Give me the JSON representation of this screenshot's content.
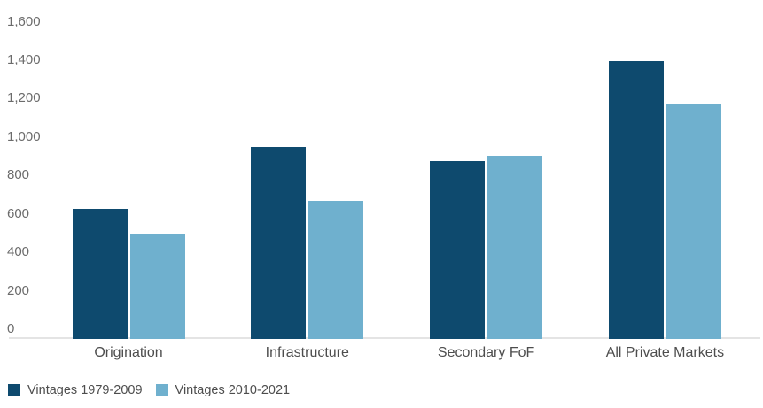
{
  "chart_data": {
    "type": "bar",
    "title": "",
    "subtitle": "",
    "xlabel": "",
    "ylabel": "",
    "categories": [
      "Origination",
      "Infrastructure",
      "Secondary FoF",
      "All Private Markets"
    ],
    "series": [
      {
        "name": "Vintages 1979-2009",
        "color": "#0e4a6e",
        "values": [
          675,
          1000,
          925,
          1445
        ]
      },
      {
        "name": "Vintages 2010-2021",
        "color": "#6fb0ce",
        "values": [
          550,
          720,
          955,
          1220
        ]
      }
    ],
    "ylim": [
      0,
      1600
    ],
    "y_ticks": [
      0,
      200,
      400,
      600,
      800,
      1000,
      1200,
      1400,
      1600
    ],
    "y_tick_labels": [
      "0",
      "200",
      "400",
      "600",
      "800",
      "1,000",
      "1,200",
      "1,400",
      "1,600"
    ],
    "grid": false,
    "legend_position": "bottom-left"
  },
  "legend": {
    "items": [
      {
        "label": "Vintages 1979-2009",
        "color": "#0e4a6e"
      },
      {
        "label": "Vintages 2010-2021",
        "color": "#6fb0ce"
      }
    ]
  },
  "colors": {
    "background": "#ffffff",
    "axis_line": "#e4e4e4",
    "tick_label_text": "#6b6b6b",
    "category_label_text": "#4d4d4d",
    "legend_label_text": "#4d4d4d",
    "series_dark_blue": "#0e4a6e",
    "series_light_blue": "#6fb0ce"
  }
}
